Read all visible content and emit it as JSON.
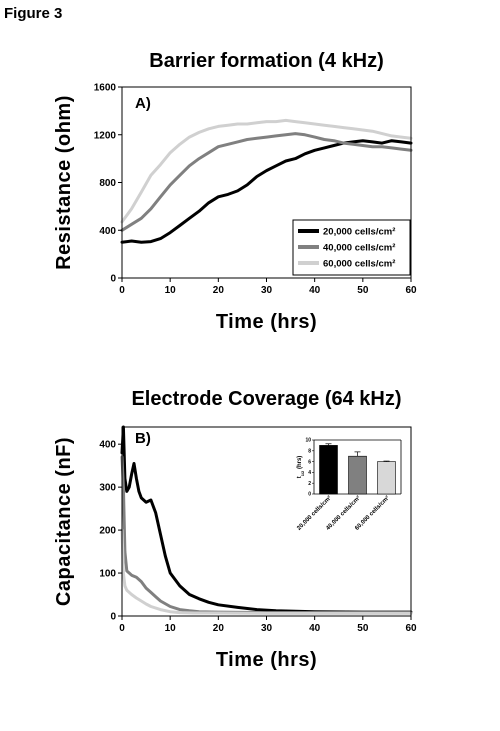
{
  "figure_label": "Figure 3",
  "chart_data": [
    {
      "type": "line",
      "title": "Barrier formation (4 kHz)",
      "panel_label": "A)",
      "xlabel": "Time (hrs)",
      "ylabel": "Resistance (ohm)",
      "xlim": [
        0,
        60
      ],
      "ylim": [
        0,
        1600
      ],
      "xticks": [
        0,
        10,
        20,
        30,
        40,
        50,
        60
      ],
      "yticks": [
        0,
        400,
        800,
        1200,
        1600
      ],
      "grid": false,
      "legend_position": "bottom-right",
      "series": [
        {
          "name": "20,000 cells/cm²",
          "color": "#000000",
          "x": [
            0,
            2,
            4,
            6,
            8,
            10,
            12,
            14,
            16,
            18,
            20,
            22,
            24,
            26,
            28,
            30,
            32,
            34,
            36,
            38,
            40,
            42,
            44,
            46,
            48,
            50,
            52,
            54,
            56,
            58,
            60
          ],
          "y": [
            300,
            310,
            300,
            305,
            330,
            380,
            440,
            500,
            560,
            630,
            680,
            700,
            730,
            780,
            850,
            900,
            940,
            980,
            1000,
            1040,
            1070,
            1090,
            1110,
            1130,
            1140,
            1150,
            1140,
            1130,
            1150,
            1140,
            1130
          ]
        },
        {
          "name": "40,000 cells/cm²",
          "color": "#808080",
          "x": [
            0,
            2,
            4,
            6,
            8,
            10,
            12,
            14,
            16,
            18,
            20,
            22,
            24,
            26,
            28,
            30,
            32,
            34,
            36,
            38,
            40,
            42,
            44,
            46,
            48,
            50,
            52,
            54,
            56,
            58,
            60
          ],
          "y": [
            400,
            450,
            500,
            580,
            680,
            780,
            860,
            940,
            1000,
            1050,
            1100,
            1120,
            1140,
            1160,
            1170,
            1180,
            1190,
            1200,
            1210,
            1200,
            1180,
            1160,
            1150,
            1130,
            1120,
            1110,
            1100,
            1100,
            1090,
            1080,
            1070
          ]
        },
        {
          "name": "60,000 cells/cm²",
          "color": "#d0d0d0",
          "x": [
            0,
            2,
            4,
            6,
            8,
            10,
            12,
            14,
            16,
            18,
            20,
            22,
            24,
            26,
            28,
            30,
            32,
            34,
            36,
            38,
            40,
            42,
            44,
            46,
            48,
            50,
            52,
            54,
            56,
            58,
            60
          ],
          "y": [
            470,
            580,
            720,
            860,
            950,
            1050,
            1120,
            1180,
            1220,
            1250,
            1270,
            1280,
            1290,
            1290,
            1300,
            1310,
            1310,
            1320,
            1310,
            1300,
            1290,
            1280,
            1270,
            1260,
            1250,
            1240,
            1230,
            1210,
            1190,
            1180,
            1170
          ]
        }
      ]
    },
    {
      "type": "line",
      "title": "Electrode Coverage (64 kHz)",
      "panel_label": "B)",
      "xlabel": "Time (hrs)",
      "ylabel": "Capacitance (nF)",
      "xlim": [
        0,
        60
      ],
      "ylim": [
        0,
        440
      ],
      "xticks": [
        0,
        10,
        20,
        30,
        40,
        50,
        60
      ],
      "yticks": [
        0,
        100,
        200,
        300,
        400
      ],
      "grid": false,
      "series": [
        {
          "color": "#000000",
          "x": [
            0,
            0.3,
            0.6,
            1,
            1.5,
            2,
            2.5,
            3,
            3.5,
            4,
            5,
            6,
            7,
            8,
            9,
            10,
            12,
            14,
            16,
            18,
            20,
            24,
            28,
            32,
            40,
            50,
            60
          ],
          "y": [
            380,
            440,
            320,
            290,
            300,
            330,
            355,
            320,
            290,
            275,
            265,
            270,
            240,
            190,
            140,
            100,
            70,
            50,
            40,
            32,
            26,
            20,
            15,
            12,
            10,
            9,
            9
          ]
        },
        {
          "color": "#808080",
          "x": [
            0,
            0.3,
            0.6,
            1,
            1.5,
            2,
            3,
            4,
            5,
            6,
            7,
            8,
            10,
            12,
            14,
            16,
            20,
            30,
            40,
            60
          ],
          "y": [
            370,
            300,
            150,
            105,
            100,
            95,
            90,
            80,
            65,
            55,
            45,
            35,
            22,
            15,
            12,
            10,
            9,
            8,
            8,
            8
          ]
        },
        {
          "color": "#d0d0d0",
          "x": [
            0,
            0.3,
            0.6,
            1,
            2,
            3,
            4,
            5,
            6,
            8,
            10,
            12,
            15,
            20,
            30,
            60
          ],
          "y": [
            200,
            100,
            70,
            60,
            50,
            42,
            35,
            28,
            22,
            15,
            10,
            8,
            7,
            7,
            6,
            6
          ]
        }
      ]
    },
    {
      "type": "bar",
      "inset_of": "Electrode Coverage (64 kHz)",
      "categories": [
        "20,000 cells/cm²",
        "40,000 cells/cm²",
        "60,000 cells/cm²"
      ],
      "values": [
        9,
        7,
        6
      ],
      "errors": [
        0.3,
        0.8,
        0.1
      ],
      "colors": [
        "#000000",
        "#808080",
        "#d8d8d8"
      ],
      "ylabel": "t1/2 (hrs)",
      "ylim": [
        0,
        10
      ],
      "yticks": [
        0,
        2,
        4,
        6,
        8,
        10
      ]
    }
  ]
}
